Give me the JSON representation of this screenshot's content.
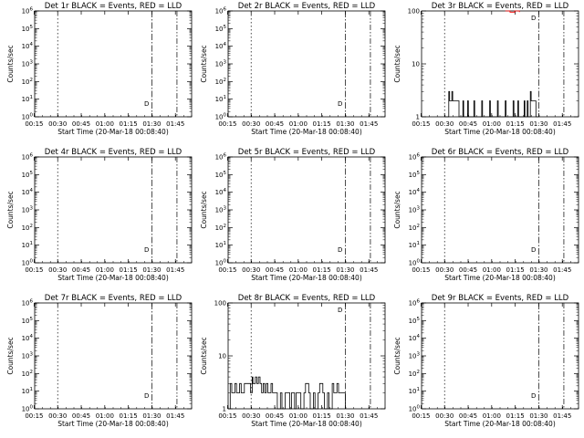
{
  "figure": {
    "background": "#ffffff",
    "axis_color": "#000000",
    "event_color": "#000000",
    "lld_color": "#ff0000"
  },
  "chart_data": [
    {
      "type": "line",
      "title": "Det 1r BLACK = Events, RED = LLD",
      "xlabel": "Start Time (20-Mar-18 00:08:40)",
      "ylabel": "Counts/sec",
      "x_ticks": [
        "00:15",
        "00:30",
        "00:45",
        "01:00",
        "01:15",
        "01:30",
        "01:45"
      ],
      "x_range_min": [
        6.67,
        106.67
      ],
      "y_scale": "log",
      "ylim": [
        1,
        1000000
      ],
      "y_ticks": [
        "10^0",
        "10^1",
        "10^2",
        "10^3",
        "10^4",
        "10^5",
        "10^6"
      ],
      "event_lines_min": [
        21.33,
        81.33,
        97.33
      ],
      "annotation": "D",
      "series": []
    },
    {
      "type": "line",
      "title": "Det 2r BLACK = Events, RED = LLD",
      "xlabel": "Start Time (20-Mar-18 00:08:40)",
      "ylabel": "Counts/sec",
      "x_ticks": [
        "00:15",
        "00:30",
        "00:45",
        "01:00",
        "01:15",
        "01:30",
        "01:45"
      ],
      "x_range_min": [
        6.67,
        106.67
      ],
      "y_scale": "log",
      "ylim": [
        1,
        1000000
      ],
      "y_ticks": [
        "10^0",
        "10^1",
        "10^2",
        "10^3",
        "10^4",
        "10^5",
        "10^6"
      ],
      "event_lines_min": [
        21.33,
        81.33,
        97.33
      ],
      "annotation": "D",
      "series": []
    },
    {
      "type": "line",
      "title": "Det 3r BLACK = Events, RED = LLD",
      "xlabel": "Start Time (20-Mar-18 00:08:40)",
      "ylabel": "Counts/sec",
      "x_ticks": [
        "00:15",
        "00:30",
        "00:45",
        "01:00",
        "01:15",
        "01:30",
        "01:45"
      ],
      "x_range_min": [
        6.67,
        106.67
      ],
      "y_scale": "log",
      "ylim": [
        1,
        100
      ],
      "y_ticks": [
        "1",
        "10",
        "100"
      ],
      "event_lines_min": [
        21.33,
        81.33,
        97.33
      ],
      "annotation": "D",
      "series": [
        {
          "name": "Events",
          "color": "#000000",
          "x": [
            21.3,
            24,
            24.5,
            26,
            26.5,
            27,
            30,
            30.5,
            33,
            33.5,
            36,
            36.5,
            40,
            40.5,
            45,
            45.5,
            50,
            50.5,
            55,
            55.5,
            60,
            60.5,
            65,
            65.5,
            68,
            68.5,
            72,
            72.5,
            74,
            74.5,
            76,
            76.5,
            79,
            79.5,
            81.3
          ],
          "y": [
            1,
            3,
            2,
            3,
            2,
            2,
            2,
            1,
            2,
            1,
            2,
            1,
            2,
            1,
            2,
            1,
            2,
            1,
            2,
            1,
            2,
            1,
            2,
            1,
            2,
            1,
            2,
            1,
            2,
            1,
            3,
            2,
            2,
            1,
            1
          ]
        },
        {
          "name": "LLD",
          "color": "#ff0000",
          "x": [
            60,
            63,
            66,
            69
          ],
          "y": [
            100,
            95,
            100,
            95
          ]
        }
      ]
    },
    {
      "type": "line",
      "title": "Det 4r BLACK = Events, RED = LLD",
      "xlabel": "Start Time (20-Mar-18 00:08:40)",
      "ylabel": "Counts/sec",
      "x_ticks": [
        "00:15",
        "00:30",
        "00:45",
        "01:00",
        "01:15",
        "01:30",
        "01:45"
      ],
      "x_range_min": [
        6.67,
        106.67
      ],
      "y_scale": "log",
      "ylim": [
        1,
        1000000
      ],
      "y_ticks": [
        "10^0",
        "10^1",
        "10^2",
        "10^3",
        "10^4",
        "10^5",
        "10^6"
      ],
      "event_lines_min": [
        21.33,
        81.33,
        97.33
      ],
      "annotation": "D",
      "series": []
    },
    {
      "type": "line",
      "title": "Det 5r BLACK = Events, RED = LLD",
      "xlabel": "Start Time (20-Mar-18 00:08:40)",
      "ylabel": "Counts/sec",
      "x_ticks": [
        "00:15",
        "00:30",
        "00:45",
        "01:00",
        "01:15",
        "01:30",
        "01:45"
      ],
      "x_range_min": [
        6.67,
        106.67
      ],
      "y_scale": "log",
      "ylim": [
        1,
        1000000
      ],
      "y_ticks": [
        "10^0",
        "10^1",
        "10^2",
        "10^3",
        "10^4",
        "10^5",
        "10^6"
      ],
      "event_lines_min": [
        21.33,
        81.33,
        97.33
      ],
      "annotation": "D",
      "series": []
    },
    {
      "type": "line",
      "title": "Det 6r BLACK = Events, RED = LLD",
      "xlabel": "Start Time (20-Mar-18 00:08:40)",
      "ylabel": "Counts/sec",
      "x_ticks": [
        "00:15",
        "00:30",
        "00:45",
        "01:00",
        "01:15",
        "01:30",
        "01:45"
      ],
      "x_range_min": [
        6.67,
        106.67
      ],
      "y_scale": "log",
      "ylim": [
        1,
        1000000
      ],
      "y_ticks": [
        "10^0",
        "10^1",
        "10^2",
        "10^3",
        "10^4",
        "10^5",
        "10^6"
      ],
      "event_lines_min": [
        21.33,
        81.33,
        97.33
      ],
      "annotation": "D",
      "series": []
    },
    {
      "type": "line",
      "title": "Det 7r BLACK = Events, RED = LLD",
      "xlabel": "Start Time (20-Mar-18 00:08:40)",
      "ylabel": "Counts/sec",
      "x_ticks": [
        "00:15",
        "00:30",
        "00:45",
        "01:00",
        "01:15",
        "01:30",
        "01:45"
      ],
      "x_range_min": [
        6.67,
        106.67
      ],
      "y_scale": "log",
      "ylim": [
        1,
        1000000
      ],
      "y_ticks": [
        "10^0",
        "10^1",
        "10^2",
        "10^3",
        "10^4",
        "10^5",
        "10^6"
      ],
      "event_lines_min": [
        21.33,
        81.33,
        97.33
      ],
      "annotation": "D",
      "series": []
    },
    {
      "type": "line",
      "title": "Det 8r BLACK = Events, RED = LLD",
      "xlabel": "Start Time (20-Mar-18 00:08:40)",
      "ylabel": "Counts/sec",
      "x_ticks": [
        "00:15",
        "00:30",
        "00:45",
        "01:00",
        "01:15",
        "01:30",
        "01:45"
      ],
      "x_range_min": [
        6.67,
        106.67
      ],
      "y_scale": "log",
      "ylim": [
        1,
        100
      ],
      "y_ticks": [
        "1",
        "10",
        "100"
      ],
      "event_lines_min": [
        21.33,
        81.33,
        97.33
      ],
      "annotation": "D",
      "series": [
        {
          "name": "Events",
          "color": "#000000",
          "x": [
            6.67,
            8,
            9,
            11,
            12,
            14,
            15,
            17,
            18,
            21,
            22,
            22.5,
            24,
            25,
            26,
            27,
            28,
            29,
            30,
            31,
            32,
            34,
            35,
            37,
            38,
            40,
            41,
            43,
            44,
            46,
            47,
            49,
            50,
            52,
            53,
            55,
            56,
            58,
            59,
            61,
            62,
            64,
            65,
            67,
            68,
            70,
            71,
            73,
            74,
            76,
            77,
            79,
            80,
            81.3
          ],
          "y": [
            1,
            3,
            2,
            3,
            2,
            3,
            2,
            3,
            3,
            2,
            4,
            3,
            4,
            3,
            4,
            3,
            2,
            3,
            2,
            3,
            2,
            3,
            2,
            2,
            1,
            2,
            1,
            2,
            2,
            1,
            2,
            1,
            2,
            2,
            1,
            2,
            3,
            2,
            1,
            2,
            1,
            2,
            3,
            2,
            1,
            2,
            1,
            3,
            2,
            3,
            2,
            2,
            2,
            1
          ]
        }
      ]
    },
    {
      "type": "line",
      "title": "Det 9r BLACK = Events, RED = LLD",
      "xlabel": "Start Time (20-Mar-18 00:08:40)",
      "ylabel": "Counts/sec",
      "x_ticks": [
        "00:15",
        "00:30",
        "00:45",
        "01:00",
        "01:15",
        "01:30",
        "01:45"
      ],
      "x_range_min": [
        6.67,
        106.67
      ],
      "y_scale": "log",
      "ylim": [
        1,
        1000000
      ],
      "y_ticks": [
        "10^0",
        "10^1",
        "10^2",
        "10^3",
        "10^4",
        "10^5",
        "10^6"
      ],
      "event_lines_min": [
        21.33,
        81.33,
        97.33
      ],
      "annotation": "D",
      "series": []
    }
  ]
}
